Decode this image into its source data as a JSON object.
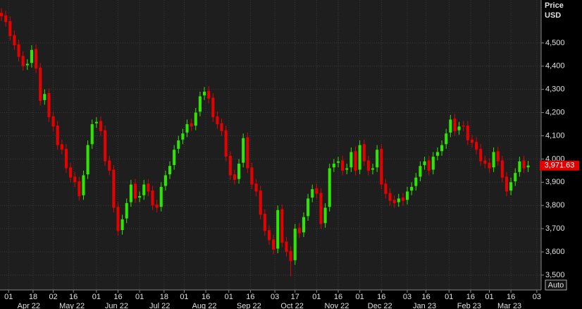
{
  "chart_data": {
    "type": "candlestick",
    "axis_title": "Price",
    "axis_unit": "USD",
    "button": "Auto",
    "up_color": "#2ee600",
    "down_color": "#e60000",
    "grid": true,
    "last_price": {
      "value": 3971.63,
      "label": "3,971.63"
    },
    "xlim": [
      -6,
      370
    ],
    "ylim": [
      3439,
      4685
    ],
    "yticks": [
      {
        "value": 3500,
        "label": "3,500"
      },
      {
        "value": 3600,
        "label": "3,600"
      },
      {
        "value": 3700,
        "label": "3,700"
      },
      {
        "value": 3800,
        "label": "3,800"
      },
      {
        "value": 3900,
        "label": "3,900"
      },
      {
        "value": 4000,
        "label": "4,000"
      },
      {
        "value": 4100,
        "label": "4,100"
      },
      {
        "value": 4200,
        "label": "4,200"
      },
      {
        "value": 4300,
        "label": "4,300"
      },
      {
        "value": 4400,
        "label": "4,400"
      },
      {
        "value": 4500,
        "label": "4,500"
      }
    ],
    "xticks": [
      {
        "value": 0,
        "label": "01"
      },
      {
        "value": 17,
        "label": "18"
      },
      {
        "value": 31,
        "label": "02"
      },
      {
        "value": 45,
        "label": "16"
      },
      {
        "value": 61,
        "label": "01"
      },
      {
        "value": 76,
        "label": "16"
      },
      {
        "value": 91,
        "label": "01"
      },
      {
        "value": 108,
        "label": "18"
      },
      {
        "value": 122,
        "label": "01"
      },
      {
        "value": 137,
        "label": "16"
      },
      {
        "value": 153,
        "label": "01"
      },
      {
        "value": 168,
        "label": "16"
      },
      {
        "value": 185,
        "label": "03"
      },
      {
        "value": 199,
        "label": "17"
      },
      {
        "value": 214,
        "label": "01"
      },
      {
        "value": 229,
        "label": "16"
      },
      {
        "value": 244,
        "label": "01"
      },
      {
        "value": 259,
        "label": "16"
      },
      {
        "value": 277,
        "label": "03"
      },
      {
        "value": 290,
        "label": "16"
      },
      {
        "value": 306,
        "label": "01"
      },
      {
        "value": 321,
        "label": "16"
      },
      {
        "value": 334,
        "label": "01"
      },
      {
        "value": 349,
        "label": "16"
      },
      {
        "value": 367,
        "label": "03"
      }
    ],
    "months": [
      {
        "value": 0,
        "label": "Apr 22"
      },
      {
        "value": 30,
        "label": "May 22"
      },
      {
        "value": 61,
        "label": "Jun 22"
      },
      {
        "value": 91,
        "label": "Jul 22"
      },
      {
        "value": 122,
        "label": "Aug 22"
      },
      {
        "value": 153,
        "label": "Sep 22"
      },
      {
        "value": 183,
        "label": "Oct 22"
      },
      {
        "value": 214,
        "label": "Nov 22"
      },
      {
        "value": 244,
        "label": "Dec 22"
      },
      {
        "value": 275,
        "label": "Jan 23"
      },
      {
        "value": 306,
        "label": "Feb 23"
      },
      {
        "value": 334,
        "label": "Mar 23"
      }
    ],
    "x": [
      -5,
      -2,
      1,
      4,
      7,
      10,
      13,
      16,
      19,
      22,
      25,
      28,
      31,
      34,
      37,
      40,
      43,
      46,
      49,
      52,
      55,
      58,
      61,
      64,
      67,
      70,
      73,
      76,
      79,
      82,
      85,
      88,
      91,
      94,
      97,
      100,
      103,
      106,
      109,
      112,
      115,
      118,
      121,
      124,
      127,
      130,
      133,
      136,
      139,
      142,
      145,
      148,
      151,
      154,
      157,
      160,
      163,
      166,
      169,
      172,
      175,
      178,
      181,
      184,
      187,
      190,
      193,
      196,
      199,
      202,
      205,
      208,
      211,
      214,
      217,
      220,
      223,
      226,
      229,
      232,
      235,
      238,
      241,
      244,
      247,
      250,
      253,
      256,
      259,
      262,
      265,
      268,
      271,
      274,
      277,
      280,
      283,
      286,
      289,
      292,
      295,
      298,
      301,
      304,
      307,
      310,
      313,
      316,
      319,
      322,
      325,
      328,
      331,
      334,
      337,
      340,
      343,
      346,
      349,
      352,
      355,
      358,
      361
    ],
    "open": [
      4630,
      4619,
      4594,
      4534,
      4494,
      4444,
      4404,
      4414,
      4474,
      4394,
      4254,
      4284,
      4184,
      4144,
      4064,
      4044,
      3964,
      3924,
      3904,
      3844,
      3934,
      4064,
      4154,
      4164,
      4124,
      3994,
      3954,
      3794,
      3694,
      3744,
      3814,
      3894,
      3834,
      3844,
      3894,
      3864,
      3804,
      3794,
      3884,
      3934,
      3974,
      4044,
      4084,
      4114,
      4154,
      4144,
      4204,
      4274,
      4294,
      4264,
      4184,
      4154,
      4124,
      4014,
      3934,
      3914,
      3984,
      4094,
      3964,
      3894,
      3864,
      3764,
      3694,
      3654,
      3614,
      3784,
      3644,
      3604,
      3564,
      3704,
      3684,
      3754,
      3834,
      3874,
      3854,
      3724,
      3794,
      3964,
      3984,
      3994,
      3954,
      3964,
      4034,
      3954,
      4064,
      3994,
      3954,
      3964,
      4044,
      3894,
      3854,
      3824,
      3814,
      3834,
      3824,
      3864,
      3884,
      3924,
      3974,
      3994,
      3954,
      4014,
      4034,
      4064,
      4114,
      4174,
      4124,
      4144,
      4144,
      4084,
      4074,
      4044,
      3994,
      3984,
      3964,
      4034,
      3994,
      3924,
      3864,
      3904,
      3944,
      3994,
      3964
    ],
    "high": [
      4650,
      4639,
      4614,
      4554,
      4514,
      4464,
      4430,
      4490,
      4494,
      4414,
      4300,
      4304,
      4204,
      4164,
      4084,
      4064,
      3984,
      3944,
      3924,
      3950,
      4080,
      4170,
      4180,
      4184,
      4144,
      4014,
      3974,
      3814,
      3760,
      3830,
      3910,
      3914,
      3860,
      3910,
      3914,
      3884,
      3824,
      3900,
      3950,
      3990,
      4060,
      4100,
      4130,
      4170,
      4174,
      4220,
      4290,
      4310,
      4314,
      4284,
      4204,
      4174,
      4144,
      4034,
      3954,
      4000,
      4110,
      4114,
      3984,
      3914,
      3884,
      3784,
      3714,
      3674,
      3800,
      3804,
      3664,
      3624,
      3720,
      3724,
      3770,
      3850,
      3890,
      3894,
      3874,
      3810,
      3980,
      4000,
      4010,
      4014,
      3980,
      4050,
      4054,
      4080,
      4084,
      4014,
      3980,
      4060,
      4064,
      3914,
      3874,
      3844,
      3850,
      3854,
      3880,
      3900,
      3940,
      3990,
      4010,
      4014,
      4030,
      4050,
      4080,
      4130,
      4190,
      4194,
      4160,
      4164,
      4164,
      4104,
      4094,
      4064,
      4014,
      4004,
      4050,
      4054,
      4014,
      3944,
      3920,
      3960,
      4010,
      4014,
      3992
    ],
    "low": [
      4595,
      4570,
      4510,
      4470,
      4420,
      4380,
      4384,
      4394,
      4370,
      4230,
      4234,
      4160,
      4120,
      4040,
      4020,
      3940,
      3900,
      3880,
      3820,
      3824,
      3914,
      4044,
      4134,
      4100,
      3970,
      3930,
      3770,
      3670,
      3674,
      3724,
      3794,
      3810,
      3814,
      3824,
      3840,
      3780,
      3770,
      3774,
      3864,
      3914,
      3954,
      4024,
      4064,
      4094,
      4120,
      4124,
      4184,
      4254,
      4240,
      4160,
      4130,
      4100,
      3990,
      3910,
      3890,
      3894,
      3964,
      3940,
      3870,
      3840,
      3740,
      3670,
      3630,
      3590,
      3594,
      3620,
      3580,
      3495,
      3544,
      3660,
      3664,
      3734,
      3814,
      3830,
      3700,
      3704,
      3774,
      3944,
      3964,
      3930,
      3934,
      3944,
      3930,
      3934,
      3970,
      3930,
      3934,
      3944,
      3870,
      3830,
      3800,
      3790,
      3794,
      3800,
      3804,
      3844,
      3864,
      3904,
      3954,
      3930,
      3934,
      3994,
      4014,
      4044,
      4094,
      4100,
      4104,
      4120,
      4060,
      4050,
      4020,
      3970,
      3960,
      3940,
      3944,
      3970,
      3900,
      3840,
      3844,
      3884,
      3924,
      3940,
      3944
    ],
    "close": [
      4615,
      4590,
      4530,
      4490,
      4440,
      4400,
      4410,
      4470,
      4390,
      4250,
      4280,
      4180,
      4140,
      4060,
      4040,
      3960,
      3920,
      3900,
      3840,
      3930,
      4060,
      4150,
      4160,
      4120,
      3990,
      3950,
      3790,
      3690,
      3740,
      3810,
      3890,
      3830,
      3840,
      3890,
      3860,
      3800,
      3790,
      3880,
      3930,
      3970,
      4040,
      4080,
      4110,
      4150,
      4140,
      4200,
      4270,
      4290,
      4260,
      4180,
      4150,
      4120,
      4010,
      3930,
      3910,
      3980,
      4090,
      3960,
      3890,
      3860,
      3760,
      3690,
      3650,
      3610,
      3780,
      3640,
      3600,
      3560,
      3700,
      3680,
      3750,
      3830,
      3870,
      3850,
      3720,
      3790,
      3960,
      3980,
      3990,
      3950,
      3960,
      4030,
      3950,
      4060,
      3990,
      3950,
      3960,
      4040,
      3890,
      3850,
      3820,
      3810,
      3830,
      3820,
      3860,
      3880,
      3920,
      3970,
      3990,
      3950,
      4010,
      4030,
      4060,
      4110,
      4170,
      4120,
      4140,
      4140,
      4080,
      4070,
      4040,
      3990,
      3980,
      3960,
      4030,
      3990,
      3920,
      3860,
      3900,
      3940,
      3990,
      3960,
      3972
    ]
  }
}
